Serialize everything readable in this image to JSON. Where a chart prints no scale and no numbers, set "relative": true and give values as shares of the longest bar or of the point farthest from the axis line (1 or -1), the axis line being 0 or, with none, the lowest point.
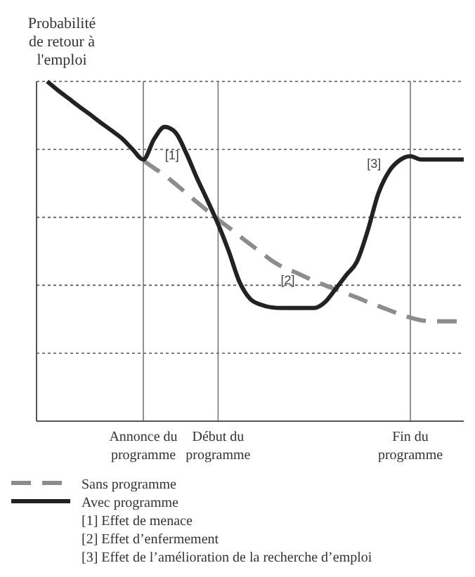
{
  "chart_data": {
    "type": "line",
    "relative": true,
    "ylabel": "Probabilité de retour à l'emploi",
    "categories": [
      null,
      null,
      null,
      null,
      null,
      null,
      null,
      null,
      null,
      null,
      "Annonce du programme",
      null,
      null,
      null,
      null,
      null,
      null,
      "Début du programme",
      null,
      null,
      null,
      null,
      null,
      null,
      null,
      null,
      null,
      null,
      null,
      null,
      null,
      null,
      null,
      null,
      null,
      "Fin du programme",
      null,
      null,
      null,
      null,
      null
    ],
    "grid": true,
    "legend": "bottom",
    "series": [
      {
        "name": "Sans programme",
        "color": "#8c8c8c",
        "line_style": "dashed",
        "values": [
          null,
          null,
          null,
          null,
          null,
          null,
          null,
          null,
          null,
          null,
          0.767,
          0.745,
          0.724,
          0.698,
          0.672,
          0.645,
          0.619,
          0.593,
          0.57,
          0.545,
          0.521,
          0.497,
          0.473,
          0.454,
          0.441,
          0.427,
          0.413,
          0.4,
          0.388,
          0.376,
          0.364,
          0.351,
          0.339,
          0.327,
          0.315,
          0.305,
          0.297,
          0.294,
          0.294,
          0.294,
          0.294
        ]
      },
      {
        "name": "Avec programme",
        "color": "#222222",
        "line_style": "solid",
        "values": [
          null,
          1.0,
          0.974,
          0.95,
          0.926,
          0.903,
          0.879,
          0.856,
          0.832,
          0.8,
          0.77,
          0.83,
          0.866,
          0.85,
          0.79,
          0.717,
          0.65,
          0.58,
          0.5,
          0.41,
          0.36,
          0.343,
          0.335,
          0.333,
          0.333,
          0.333,
          0.333,
          0.35,
          0.389,
          0.43,
          0.47,
          0.56,
          0.67,
          0.735,
          0.768,
          0.78,
          0.77,
          0.77,
          0.77,
          0.77,
          0.77
        ]
      }
    ],
    "annotations": [
      "[1]",
      "[2]",
      "[3]",
      "[1] Effet de menace",
      "[2] Effet d’enfermement",
      "[3] Effet de l’amélioration de la recherche d’emploi"
    ]
  }
}
